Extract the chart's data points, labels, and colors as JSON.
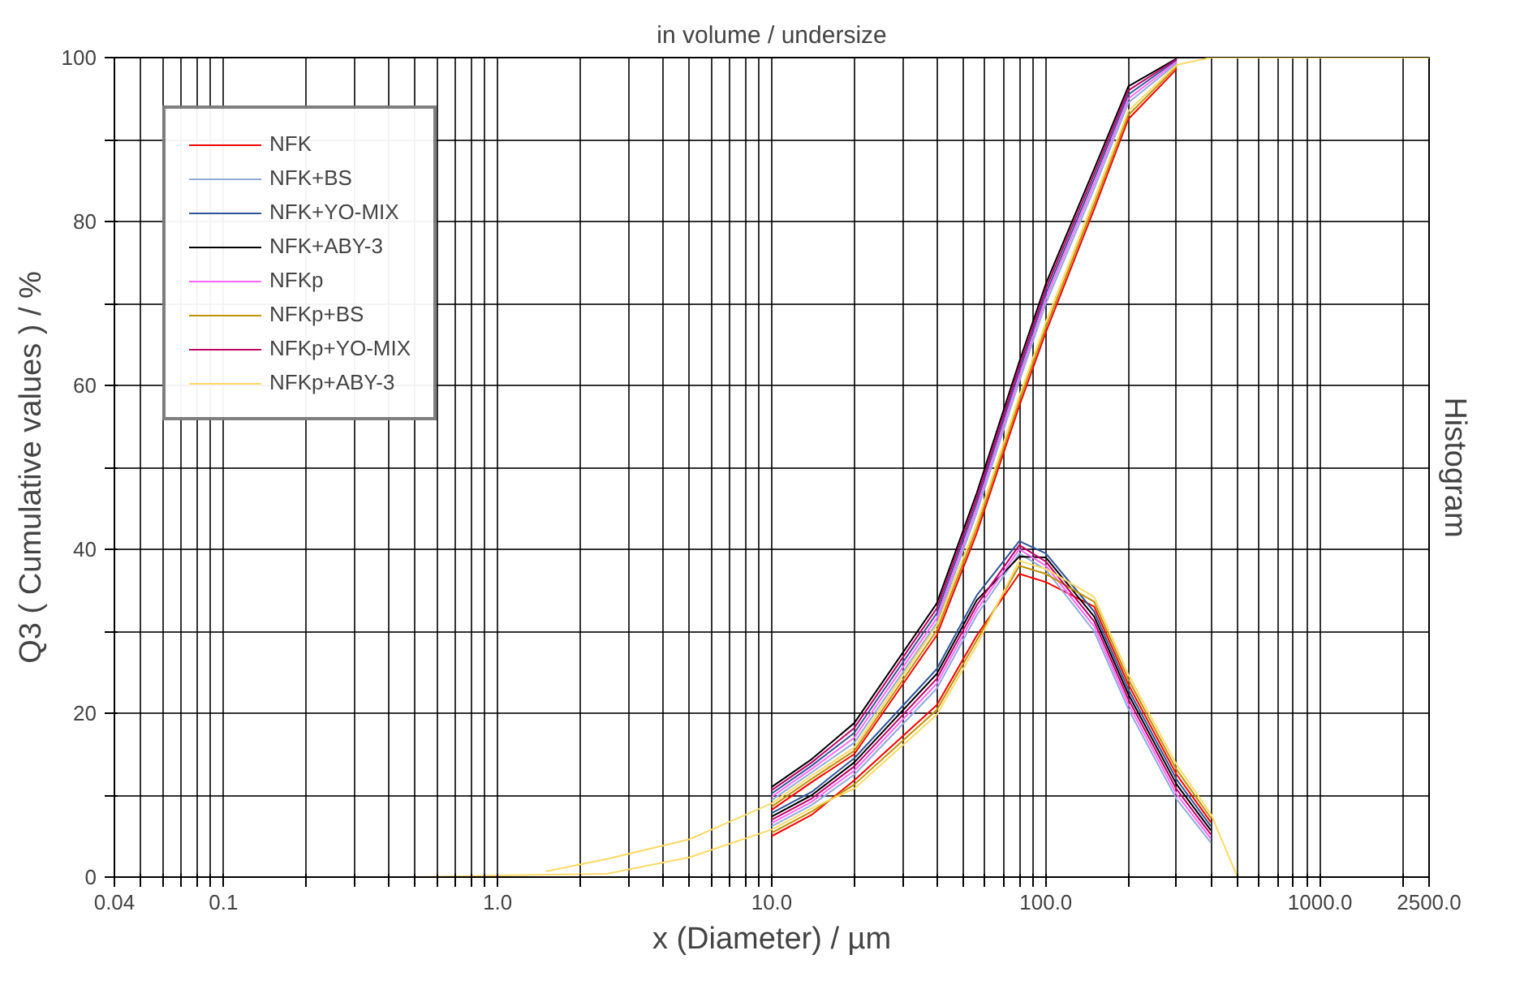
{
  "chart_data": {
    "type": "line",
    "title": "in volume / undersize",
    "xlabel": "x (Diameter) / µm",
    "ylabel": "Q3 ( Cumulative values ) / %",
    "y2label": "Histogram",
    "log": "x",
    "grid": true,
    "legend": "top left",
    "xlim": [
      0.04,
      2500
    ],
    "xticks": [
      0.04,
      {
        "value": 0.05,
        "label": null
      },
      {
        "value": 0.06,
        "label": null
      },
      {
        "value": 0.07,
        "label": null
      },
      {
        "value": 0.08,
        "label": null
      },
      {
        "value": 0.09,
        "label": null
      },
      0.1,
      {
        "value": 0.2,
        "label": null
      },
      {
        "value": 0.3,
        "label": null
      },
      {
        "value": 0.4,
        "label": null
      },
      {
        "value": 0.5,
        "label": null
      },
      {
        "value": 0.6,
        "label": null
      },
      {
        "value": 0.7,
        "label": null
      },
      {
        "value": 0.8,
        "label": null
      },
      {
        "value": 0.9,
        "label": null
      },
      {
        "value": 1,
        "label": "1.0"
      },
      {
        "value": 2,
        "label": null
      },
      {
        "value": 3,
        "label": null
      },
      {
        "value": 4,
        "label": null
      },
      {
        "value": 5,
        "label": null
      },
      {
        "value": 6,
        "label": null
      },
      {
        "value": 7,
        "label": null
      },
      {
        "value": 8,
        "label": null
      },
      {
        "value": 9,
        "label": null
      },
      {
        "value": 10,
        "label": "10.0"
      },
      {
        "value": 20,
        "label": null
      },
      {
        "value": 30,
        "label": null
      },
      {
        "value": 40,
        "label": null
      },
      {
        "value": 50,
        "label": null
      },
      {
        "value": 60,
        "label": null
      },
      {
        "value": 70,
        "label": null
      },
      {
        "value": 80,
        "label": null
      },
      {
        "value": 90,
        "label": null
      },
      {
        "value": 100,
        "label": "100.0"
      },
      {
        "value": 200,
        "label": null
      },
      {
        "value": 300,
        "label": null
      },
      {
        "value": 400,
        "label": null
      },
      {
        "value": 500,
        "label": null
      },
      {
        "value": 600,
        "label": null
      },
      {
        "value": 700,
        "label": null
      },
      {
        "value": 800,
        "label": null
      },
      {
        "value": 900,
        "label": null
      },
      {
        "value": 1000,
        "label": "1000.0"
      },
      {
        "value": 2000,
        "label": null
      },
      {
        "value": 2500,
        "label": "2500.0"
      }
    ],
    "ylim": [
      0,
      100
    ],
    "yticks": [
      0,
      {
        "value": 10,
        "label": null
      },
      20,
      {
        "value": 30,
        "label": null
      },
      40,
      {
        "value": 50,
        "label": null
      },
      60,
      {
        "value": 70,
        "label": null
      },
      80,
      {
        "value": 90,
        "label": null
      },
      100
    ],
    "x": [
      0.04,
      0.1,
      0.5,
      1,
      1.5,
      2.5,
      5,
      10,
      14,
      20,
      40,
      56,
      80,
      100,
      150,
      200,
      300,
      400,
      500,
      1000,
      2500
    ],
    "series": [
      {
        "name": "NFK",
        "color": "#ff0000",
        "values": [
          null,
          null,
          null,
          null,
          null,
          null,
          null,
          8.2,
          11.6,
          15,
          29.5,
          42,
          57.5,
          66.5,
          81.5,
          92.5,
          98.6,
          null,
          null,
          null,
          null
        ]
      },
      {
        "name": "NFK+BS",
        "color": "#8faadc",
        "values": [
          null,
          null,
          null,
          null,
          null,
          null,
          null,
          9.4,
          12.8,
          16.4,
          31,
          44.5,
          60.5,
          70,
          84,
          94.5,
          99.3,
          null,
          null,
          null,
          null
        ]
      },
      {
        "name": "NFK+YO-MIX",
        "color": "#2f5597",
        "values": [
          null,
          null,
          null,
          null,
          null,
          null,
          null,
          10.2,
          13.6,
          17.6,
          32.2,
          45.7,
          61.7,
          71.2,
          85.2,
          95.5,
          99.7,
          null,
          null,
          null,
          null
        ]
      },
      {
        "name": "NFK+ABY-3",
        "color": "#000000",
        "values": [
          null,
          null,
          null,
          null,
          null,
          null,
          null,
          11,
          14.4,
          18.8,
          33.4,
          46.9,
          62.9,
          72.4,
          86.4,
          96.5,
          99.9,
          null,
          null,
          null,
          null
        ]
      },
      {
        "name": "NFKp",
        "color": "#ff66ff",
        "values": [
          null,
          null,
          null,
          null,
          null,
          null,
          null,
          9.8,
          13.2,
          17,
          31.6,
          45.1,
          61.1,
          70.6,
          84.6,
          95,
          99.5,
          null,
          null,
          null,
          null
        ]
      },
      {
        "name": "NFKp+BS",
        "color": "#bf9000",
        "values": [
          null,
          null,
          null,
          null,
          null,
          null,
          null,
          8.6,
          12,
          15.4,
          30.1,
          42.6,
          58.1,
          67.1,
          82.1,
          93,
          98.9,
          null,
          null,
          null,
          null
        ]
      },
      {
        "name": "NFKp+YO-MIX",
        "color": "#c00066",
        "values": [
          null,
          null,
          null,
          null,
          null,
          null,
          null,
          10.6,
          14,
          18.2,
          32.8,
          46.3,
          62.3,
          71.8,
          85.8,
          96,
          99.8,
          null,
          null,
          null,
          null
        ]
      },
      {
        "name": "NFKp+ABY-3",
        "color": "#ffd966",
        "values": [
          null,
          null,
          null,
          null,
          0.7,
          2.2,
          4.6,
          9,
          12.4,
          15.8,
          30.7,
          43.2,
          58.7,
          67.7,
          82.7,
          93.5,
          99.1,
          100,
          100,
          100,
          100
        ]
      },
      {
        "color": "#ff0000",
        "values": [
          null,
          null,
          null,
          null,
          null,
          null,
          null,
          5,
          7.6,
          11.8,
          21,
          29.5,
          37,
          36,
          33,
          23.5,
          12.5,
          6.7,
          null,
          null,
          null
        ]
      },
      {
        "color": "#8faadc",
        "values": [
          null,
          null,
          null,
          null,
          null,
          null,
          null,
          6.2,
          8.8,
          12.5,
          23,
          32,
          39.5,
          37.5,
          30,
          20.5,
          9.5,
          4.2,
          null,
          null,
          null
        ]
      },
      {
        "color": "#2f5597",
        "values": [
          null,
          null,
          null,
          null,
          null,
          null,
          null,
          7.8,
          10.4,
          14.5,
          25.4,
          34.4,
          41,
          39.5,
          32.4,
          22.9,
          11.9,
          6.2,
          null,
          null,
          null
        ]
      },
      {
        "color": "#000000",
        "values": [
          null,
          null,
          null,
          null,
          null,
          null,
          null,
          7.4,
          10,
          14,
          24.8,
          33.8,
          39.1,
          39,
          31.8,
          22.3,
          11.3,
          5.7,
          null,
          null,
          null
        ]
      },
      {
        "color": "#ff66ff",
        "values": [
          null,
          null,
          null,
          null,
          null,
          null,
          null,
          6.6,
          9.2,
          13,
          23.6,
          32.6,
          40,
          38,
          30.6,
          21.1,
          10.1,
          4.7,
          null,
          null,
          null
        ]
      },
      {
        "color": "#bf9000",
        "values": [
          null,
          null,
          null,
          null,
          null,
          null,
          null,
          5.4,
          8,
          11.3,
          20.4,
          28.9,
          38,
          37,
          33.6,
          24.1,
          13.1,
          7.2,
          null,
          null,
          null
        ]
      },
      {
        "color": "#c00066",
        "values": [
          null,
          null,
          null,
          null,
          null,
          null,
          null,
          7,
          9.6,
          13.5,
          24.2,
          33.2,
          40.5,
          38.5,
          31.2,
          21.7,
          10.7,
          5.2,
          null,
          null,
          null
        ]
      },
      {
        "color": "#ffd966",
        "values": [
          0,
          0,
          0,
          0.2,
          0.3,
          0.4,
          2.4,
          5.8,
          8.4,
          10.8,
          19.8,
          28.3,
          38.6,
          37.6,
          34.2,
          24.7,
          13.7,
          7.7,
          0,
          0,
          0
        ]
      }
    ]
  }
}
